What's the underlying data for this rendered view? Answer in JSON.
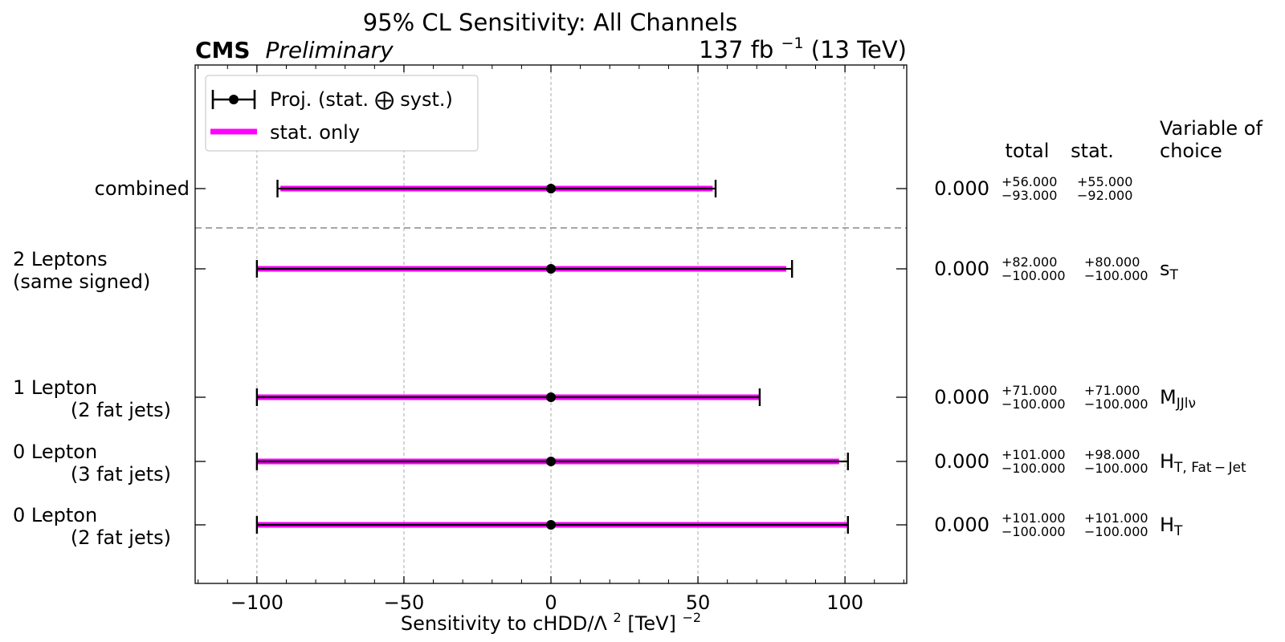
{
  "chart_data": {
    "type": "errorbar",
    "title": "95% CL Sensitivity: All Channels",
    "experiment_label": "CMS",
    "status_label": "Preliminary",
    "lumi_label": {
      "value": "137 fb",
      "exponent": "−1",
      "suffix": " (13 TeV)"
    },
    "xlabel": {
      "main": "Sensitivity to cHDD/Λ",
      "sq": "2",
      "unit": " [TeV]",
      "exp": "−2"
    },
    "xlim": [
      -121,
      121
    ],
    "xticks": [
      -100,
      -50,
      0,
      50,
      100
    ],
    "xtick_labels": [
      "−100",
      "−50",
      "0",
      "50",
      "100"
    ],
    "grid": "x",
    "legend": {
      "placement": "top-left",
      "entries": [
        {
          "label": "Proj. (stat. ⨁ syst.)",
          "style": "errorbar",
          "color": "#000000"
        },
        {
          "label": "stat. only",
          "style": "band",
          "color": "#ff00ff"
        }
      ]
    },
    "column_headers": {
      "total": "total",
      "stat": "stat.",
      "variable": "Variable of choice"
    },
    "separator_after": "combined",
    "series": [
      {
        "name": "Proj. (stat. ⨁ syst.)",
        "color": "#000000"
      },
      {
        "name": "stat. only",
        "color": "#ff00ff"
      }
    ],
    "rows": [
      {
        "label": [
          "combined"
        ],
        "center": 0,
        "total_up": 56,
        "total_down": -93,
        "stat_up": 55,
        "stat_down": -92,
        "center_text": "0.000",
        "total_up_text": "+56.000",
        "total_down_text": "−93.000",
        "stat_up_text": "+55.000",
        "stat_down_text": "−92.000",
        "variable": {
          "main": "",
          "sub": ""
        }
      },
      {
        "label": [
          "2 Leptons",
          "(same signed)"
        ],
        "center": 0,
        "total_up": 82,
        "total_down": -100,
        "stat_up": 80,
        "stat_down": -100,
        "center_text": "0.000",
        "total_up_text": "+82.000",
        "total_down_text": "−100.000",
        "stat_up_text": "+80.000",
        "stat_down_text": "−100.000",
        "variable": {
          "main": "s",
          "sub": "T"
        }
      },
      {
        "label": [
          "1 Lepton",
          "(2 fat jets)"
        ],
        "center": 0,
        "total_up": 71,
        "total_down": -100,
        "stat_up": 71,
        "stat_down": -100,
        "center_text": "0.000",
        "total_up_text": "+71.000",
        "total_down_text": "−100.000",
        "stat_up_text": "+71.000",
        "stat_down_text": "−100.000",
        "variable": {
          "main": "M",
          "sub": "JJlν"
        }
      },
      {
        "label": [
          "0 Lepton",
          "(3 fat jets)"
        ],
        "center": 0,
        "total_up": 101,
        "total_down": -100,
        "stat_up": 98,
        "stat_down": -100,
        "center_text": "0.000",
        "total_up_text": "+101.000",
        "total_down_text": "−100.000",
        "stat_up_text": "+98.000",
        "stat_down_text": "−100.000",
        "variable": {
          "main": "H",
          "sub": "T, Fat − Jet"
        }
      },
      {
        "label": [
          "0 Lepton",
          "(2 fat jets)"
        ],
        "center": 0,
        "total_up": 101,
        "total_down": -100,
        "stat_up": 101,
        "stat_down": -100,
        "center_text": "0.000",
        "total_up_text": "+101.000",
        "total_down_text": "−100.000",
        "stat_up_text": "+101.000",
        "stat_down_text": "−100.000",
        "variable": {
          "main": "H",
          "sub": "T"
        }
      }
    ]
  }
}
